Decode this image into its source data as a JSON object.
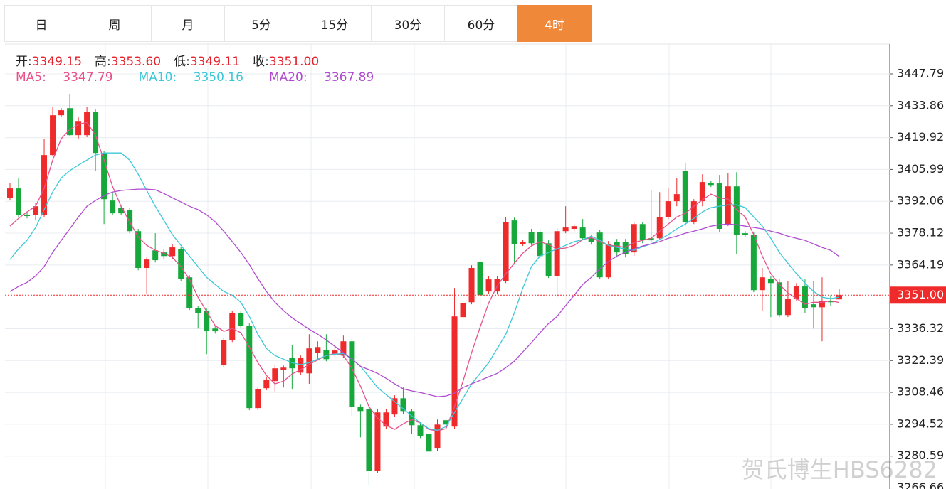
{
  "tabs": [
    "日",
    "周",
    "月",
    "5分",
    "15分",
    "30分",
    "60分",
    "4时"
  ],
  "active_tab": 7,
  "ohlc_header": [
    {
      "label": "开:",
      "value": "3349.15"
    },
    {
      "label": "高:",
      "value": "3353.60"
    },
    {
      "label": "低:",
      "value": "3349.11"
    },
    {
      "label": "收:",
      "value": "3351.00"
    }
  ],
  "watermark": "贺氏博生HBS6282",
  "chart_data": {
    "type": "candlestick",
    "up_color": "#ee2a2a",
    "down_color": "#17a83c",
    "ylim": [
      3266.2,
      3460.85
    ],
    "yticks": [
      3266.66,
      3280.59,
      3294.52,
      3308.46,
      3322.39,
      3336.32,
      3364.19,
      3378.12,
      3392.06,
      3405.99,
      3419.92,
      3433.86,
      3447.79
    ],
    "grid": true,
    "last_price": {
      "value": 3351,
      "label": "3351.00"
    },
    "ohlc": [
      [
        3393.6,
        3399.9,
        3392.4,
        3397.7
      ],
      [
        3397.7,
        3402.3,
        3385.2,
        3386.2
      ],
      [
        3386.2,
        3387.1,
        3384.6,
        3385.6
      ],
      [
        3386.2,
        3391.5,
        3383.7,
        3389.9
      ],
      [
        3386.2,
        3419.5,
        3385.2,
        3412.3
      ],
      [
        3412.3,
        3433.5,
        3411.7,
        3429.7
      ],
      [
        3429.7,
        3432.8,
        3428.8,
        3431.9
      ],
      [
        3432.8,
        3439.1,
        3420.4,
        3421.0
      ],
      [
        3421.0,
        3428.8,
        3419.5,
        3427.2
      ],
      [
        3421.0,
        3433.5,
        3420.1,
        3431.3
      ],
      [
        3431.3,
        3432.2,
        3405.5,
        3413.2
      ],
      [
        3413.2,
        3414.2,
        3382.1,
        3393.0
      ],
      [
        3392.4,
        3396.1,
        3385.9,
        3386.8
      ],
      [
        3389.3,
        3390.5,
        3385.9,
        3386.8
      ],
      [
        3388.4,
        3389.3,
        3378.1,
        3379.0
      ],
      [
        3379.0,
        3380.0,
        3361.9,
        3362.9
      ],
      [
        3362.9,
        3367.5,
        3351.7,
        3366.6
      ],
      [
        3370.6,
        3378.1,
        3365.3,
        3366.3
      ],
      [
        3369.7,
        3371.2,
        3366.9,
        3368.1
      ],
      [
        3368.1,
        3373.4,
        3366.9,
        3371.9
      ],
      [
        3371.2,
        3372.2,
        3357.3,
        3358.2
      ],
      [
        3358.8,
        3359.7,
        3344.5,
        3345.4
      ],
      [
        3345.4,
        3346.4,
        3336.4,
        3343.3
      ],
      [
        3344.2,
        3345.1,
        3325.2,
        3335.5
      ],
      [
        3336.4,
        3337.4,
        3334.2,
        3335.2
      ],
      [
        3320.6,
        3332.4,
        3319.6,
        3331.4
      ],
      [
        3331.4,
        3344.2,
        3330.5,
        3343.3
      ],
      [
        3343.3,
        3344.2,
        3336.7,
        3337.7
      ],
      [
        3337.7,
        3338.6,
        3300.7,
        3301.6
      ],
      [
        3301.6,
        3310.9,
        3300.7,
        3310.0
      ],
      [
        3310.3,
        3315.0,
        3309.4,
        3314.0
      ],
      [
        3313.4,
        3320.6,
        3308.4,
        3319.0
      ],
      [
        3318.4,
        3320.2,
        3310.6,
        3319.3
      ],
      [
        3323.7,
        3329.3,
        3309.7,
        3319.0
      ],
      [
        3317.1,
        3324.6,
        3316.2,
        3323.7
      ],
      [
        3316.8,
        3333.9,
        3312.2,
        3327.7
      ],
      [
        3325.8,
        3330.8,
        3323.0,
        3328.3
      ],
      [
        3327.1,
        3333.9,
        3322.1,
        3323.0
      ],
      [
        3325.2,
        3328.3,
        3324.0,
        3326.8
      ],
      [
        3324.6,
        3333.3,
        3323.7,
        3330.8
      ],
      [
        3330.8,
        3331.8,
        3298.2,
        3302.2
      ],
      [
        3302.2,
        3303.1,
        3288.8,
        3300.3
      ],
      [
        3301.3,
        3302.2,
        3267.7,
        3274.2
      ],
      [
        3274.2,
        3301.3,
        3273.3,
        3299.7
      ],
      [
        3293.5,
        3301.3,
        3292.3,
        3299.7
      ],
      [
        3298.8,
        3307.2,
        3297.9,
        3305.9
      ],
      [
        3305.9,
        3310.6,
        3299.1,
        3300.3
      ],
      [
        3300.3,
        3301.3,
        3290.4,
        3294.1
      ],
      [
        3294.1,
        3295.4,
        3288.5,
        3289.5
      ],
      [
        3290.4,
        3293.5,
        3281.7,
        3282.6
      ],
      [
        3283.9,
        3296.6,
        3282.9,
        3294.4
      ],
      [
        3296.3,
        3297.2,
        3293.5,
        3294.4
      ],
      [
        3293.5,
        3354.1,
        3292.6,
        3341.7
      ],
      [
        3341.4,
        3348.9,
        3340.5,
        3347.6
      ],
      [
        3347.9,
        3364.1,
        3347.0,
        3362.9
      ],
      [
        3365.7,
        3368.1,
        3345.7,
        3351.0
      ],
      [
        3352.6,
        3359.4,
        3351.7,
        3357.9
      ],
      [
        3352.6,
        3359.4,
        3351.3,
        3358.2
      ],
      [
        3357.3,
        3385.2,
        3356.3,
        3383.1
      ],
      [
        3383.7,
        3384.9,
        3364.4,
        3373.4
      ],
      [
        3373.4,
        3375.3,
        3372.5,
        3374.4
      ],
      [
        3378.7,
        3380.0,
        3372.8,
        3373.7
      ],
      [
        3378.7,
        3380.0,
        3367.2,
        3368.1
      ],
      [
        3373.7,
        3375.0,
        3358.5,
        3359.4
      ],
      [
        3359.4,
        3380.3,
        3350.1,
        3379.0
      ],
      [
        3379.0,
        3389.9,
        3378.1,
        3380.6
      ],
      [
        3380.0,
        3382.1,
        3379.0,
        3381.2
      ],
      [
        3380.6,
        3384.3,
        3375.0,
        3375.9
      ],
      [
        3375.9,
        3377.5,
        3373.1,
        3374.4
      ],
      [
        3378.4,
        3379.6,
        3357.9,
        3358.8
      ],
      [
        3358.8,
        3374.7,
        3357.9,
        3373.4
      ],
      [
        3374.4,
        3375.6,
        3367.5,
        3369.7
      ],
      [
        3374.4,
        3375.6,
        3367.5,
        3368.8
      ],
      [
        3369.7,
        3383.1,
        3368.1,
        3382.1
      ],
      [
        3382.1,
        3383.1,
        3373.7,
        3375.0
      ],
      [
        3375.9,
        3397.1,
        3374.0,
        3375.0
      ],
      [
        3375.9,
        3396.1,
        3375.0,
        3385.2
      ],
      [
        3385.2,
        3397.7,
        3384.3,
        3392.1
      ],
      [
        3392.1,
        3402.3,
        3389.9,
        3395.2
      ],
      [
        3405.5,
        3408.6,
        3381.2,
        3383.1
      ],
      [
        3383.1,
        3393.0,
        3382.1,
        3392.1
      ],
      [
        3392.1,
        3403.9,
        3389.9,
        3400.5
      ],
      [
        3399.9,
        3401.1,
        3398.3,
        3399.2
      ],
      [
        3399.9,
        3403.6,
        3378.7,
        3380.0
      ],
      [
        3382.1,
        3404.5,
        3381.2,
        3398.6
      ],
      [
        3398.6,
        3404.8,
        3368.8,
        3377.5
      ],
      [
        3378.1,
        3379.0,
        3376.5,
        3377.5
      ],
      [
        3377.5,
        3378.4,
        3352.3,
        3353.2
      ],
      [
        3353.2,
        3362.9,
        3344.2,
        3358.8
      ],
      [
        3358.2,
        3359.4,
        3341.4,
        3356.3
      ],
      [
        3356.6,
        3357.9,
        3341.4,
        3342.3
      ],
      [
        3342.3,
        3357.3,
        3341.4,
        3349.5
      ],
      [
        3349.5,
        3356.3,
        3348.5,
        3354.8
      ],
      [
        3354.8,
        3357.9,
        3343.3,
        3345.4
      ],
      [
        3347.0,
        3357.3,
        3336.4,
        3345.7
      ],
      [
        3345.7,
        3358.8,
        3330.8,
        3348.5
      ],
      [
        3348.5,
        3351.0,
        3346.4,
        3347.9
      ],
      [
        3349.15,
        3353.6,
        3349.11,
        3351
      ]
    ],
    "series": [
      {
        "name": "MA5:",
        "value_label": "3347.79",
        "color": "#e8508a",
        "values": [
          3381.2,
          3384.6,
          3387.4,
          3389.9,
          3397.7,
          3410.1,
          3419.5,
          3423.5,
          3425.7,
          3426.6,
          3421.0,
          3410.1,
          3398.6,
          3389.9,
          3383.1,
          3376.5,
          3372.8,
          3370.6,
          3369.4,
          3367.5,
          3363.5,
          3357.9,
          3350.1,
          3343.9,
          3337.7,
          3335.2,
          3336.4,
          3334.6,
          3328.3,
          3321.5,
          3315.9,
          3312.2,
          3313.4,
          3316.5,
          3318.4,
          3320.6,
          3322.7,
          3324.6,
          3325.5,
          3324.6,
          3319.0,
          3311.2,
          3302.2,
          3297.2,
          3294.1,
          3292.3,
          3294.7,
          3296.6,
          3295.1,
          3292.3,
          3291.6,
          3292.6,
          3302.2,
          3313.4,
          3325.8,
          3337.0,
          3347.6,
          3355.1,
          3360.4,
          3365.0,
          3369.4,
          3372.5,
          3374.4,
          3373.1,
          3371.2,
          3371.6,
          3372.8,
          3375.3,
          3376.2,
          3374.4,
          3372.8,
          3372.5,
          3371.9,
          3374.0,
          3375.0,
          3375.9,
          3379.0,
          3382.1,
          3385.2,
          3386.8,
          3389.9,
          3392.7,
          3395.2,
          3393.6,
          3393.0,
          3388.4,
          3385.2,
          3377.5,
          3368.1,
          3360.4,
          3355.7,
          3352.0,
          3349.5,
          3347.0,
          3347.9,
          3347.9,
          3348.5,
          3347.79
        ]
      },
      {
        "name": "MA10:",
        "value_label": "3350.16",
        "color": "#3cc8d8",
        "values": [
          3366.6,
          3371.2,
          3375.0,
          3380.6,
          3388.4,
          3396.1,
          3402.3,
          3405.5,
          3407.9,
          3410.1,
          3412.3,
          3413.2,
          3413.2,
          3413.2,
          3410.1,
          3403.9,
          3396.8,
          3389.9,
          3383.7,
          3377.5,
          3372.8,
          3368.1,
          3363.5,
          3358.8,
          3355.7,
          3352.6,
          3351.0,
          3347.9,
          3341.7,
          3333.9,
          3327.7,
          3324.6,
          3323.0,
          3321.5,
          3320.6,
          3321.5,
          3323.0,
          3324.6,
          3325.2,
          3325.5,
          3323.0,
          3319.9,
          3315.3,
          3310.6,
          3307.5,
          3304.4,
          3301.3,
          3298.2,
          3295.1,
          3292.6,
          3291.9,
          3293.5,
          3299.7,
          3305.9,
          3312.2,
          3316.8,
          3321.5,
          3327.7,
          3333.9,
          3343.3,
          3354.1,
          3363.5,
          3368.1,
          3369.7,
          3371.2,
          3372.8,
          3374.4,
          3375.3,
          3376.8,
          3375.0,
          3372.8,
          3371.9,
          3371.2,
          3370.6,
          3372.2,
          3373.4,
          3375.3,
          3377.5,
          3380.0,
          3382.1,
          3384.6,
          3387.4,
          3389.3,
          3389.9,
          3390.5,
          3390.5,
          3389.3,
          3385.2,
          3381.2,
          3375.9,
          3369.7,
          3365.0,
          3360.4,
          3356.3,
          3352.6,
          3350.1,
          3349.5,
          3350.16
        ]
      },
      {
        "name": "MA20:",
        "value_label": "3367.89",
        "color": "#b04bd0",
        "values": [
          3352.6,
          3354.8,
          3356.6,
          3359.4,
          3363.5,
          3369.7,
          3375.0,
          3380.0,
          3385.2,
          3389.9,
          3392.4,
          3394.6,
          3396.1,
          3396.8,
          3397.1,
          3397.4,
          3397.4,
          3397.1,
          3395.5,
          3393.6,
          3391.8,
          3389.9,
          3388.4,
          3386.2,
          3383.1,
          3379.0,
          3374.4,
          3369.7,
          3364.4,
          3358.2,
          3352.6,
          3347.9,
          3344.2,
          3341.1,
          3338.6,
          3336.1,
          3333.9,
          3331.4,
          3328.6,
          3325.8,
          3323.0,
          3319.9,
          3318.4,
          3316.8,
          3314.6,
          3312.2,
          3310.0,
          3309.1,
          3308.4,
          3307.5,
          3306.6,
          3306.9,
          3308.1,
          3310.6,
          3312.2,
          3313.7,
          3315.3,
          3316.8,
          3319.3,
          3322.1,
          3326.2,
          3330.2,
          3334.6,
          3338.6,
          3341.7,
          3346.4,
          3351.0,
          3355.7,
          3358.8,
          3362.5,
          3365.7,
          3368.1,
          3369.7,
          3371.2,
          3372.5,
          3373.4,
          3374.4,
          3375.9,
          3376.8,
          3378.1,
          3379.0,
          3380.0,
          3381.2,
          3381.8,
          3382.1,
          3381.8,
          3381.2,
          3380.6,
          3380.0,
          3379.0,
          3378.1,
          3376.8,
          3375.9,
          3375.0,
          3373.4,
          3371.9,
          3370.6,
          3367.89
        ]
      }
    ]
  }
}
